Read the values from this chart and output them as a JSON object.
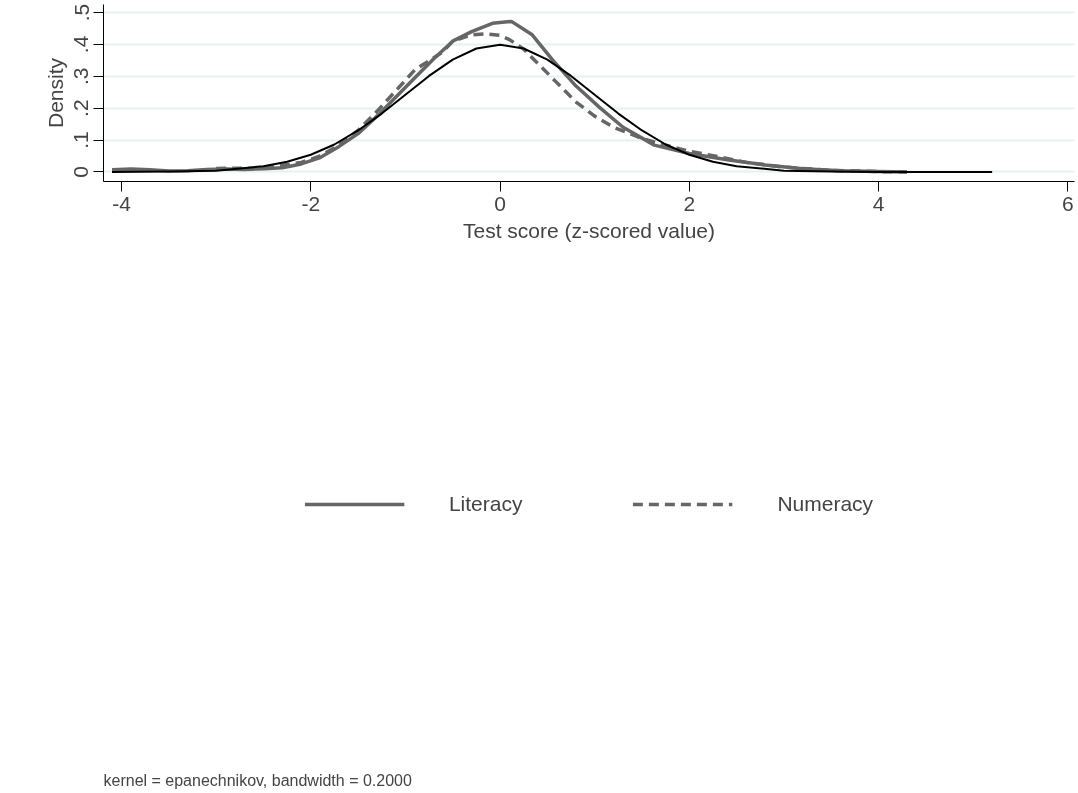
{
  "chart_data": {
    "type": "line",
    "xlabel": "Test score (z-scored value)",
    "ylabel": "Density",
    "xlim": [
      -4.19,
      6.07
    ],
    "ylim": [
      -0.03,
      0.525
    ],
    "xticks": [
      -4,
      -2,
      0,
      2,
      4,
      6
    ],
    "yticks": [
      0,
      {
        "value": 0.1,
        "label": ".1"
      },
      {
        "value": 0.2,
        "label": ".2"
      },
      {
        "value": 0.3,
        "label": ".3"
      },
      {
        "value": 0.4,
        "label": ".4"
      },
      {
        "value": 0.5,
        "label": ".5"
      }
    ],
    "grid": "y",
    "legend": "bottom",
    "series": [
      {
        "name": "Literacy",
        "color": "#666666",
        "line_style": "solid",
        "x": [
          -4.1,
          -3.9,
          -3.7,
          -3.5,
          -3.3,
          -3.1,
          -2.9,
          -2.7,
          -2.5,
          -2.3,
          -2.1,
          -1.9,
          -1.7,
          -1.5,
          -1.3,
          -1.1,
          -0.9,
          -0.7,
          -0.5,
          -0.3,
          -0.08,
          0.12,
          0.34,
          0.55,
          0.8,
          1.06,
          1.3,
          1.63,
          2.0,
          2.4,
          2.8,
          3.2,
          3.6,
          4.0,
          4.3
        ],
        "values": [
          0.007,
          0.009,
          0.007,
          0.003,
          0.004,
          0.008,
          0.009,
          0.008,
          0.01,
          0.013,
          0.025,
          0.045,
          0.08,
          0.12,
          0.175,
          0.235,
          0.295,
          0.355,
          0.41,
          0.44,
          0.466,
          0.472,
          0.43,
          0.353,
          0.27,
          0.2,
          0.14,
          0.084,
          0.058,
          0.038,
          0.022,
          0.01,
          0.004,
          0.001,
          0.0
        ]
      },
      {
        "name": "Numeracy",
        "color": "#666666",
        "line_style": "dashed",
        "x": [
          -3.0,
          -2.5,
          -2.1,
          -1.9,
          -1.7,
          -1.5,
          -1.3,
          -1.1,
          -0.9,
          -0.61,
          -0.5,
          -0.3,
          -0.15,
          0.0,
          0.1,
          0.25,
          0.4,
          0.6,
          0.8,
          1.0,
          1.2,
          1.5,
          1.8,
          2.0,
          2.3,
          2.6,
          3.0,
          3.5,
          4.0,
          4.3
        ],
        "values": [
          0.011,
          0.012,
          0.03,
          0.05,
          0.085,
          0.13,
          0.19,
          0.255,
          0.32,
          0.375,
          0.41,
          0.43,
          0.433,
          0.428,
          0.415,
          0.385,
          0.34,
          0.28,
          0.22,
          0.175,
          0.14,
          0.105,
          0.08,
          0.065,
          0.048,
          0.03,
          0.015,
          0.005,
          0.001,
          0.0
        ]
      },
      {
        "color": "#000000",
        "line_style": "solid",
        "x": [
          -4.1,
          -3.5,
          -3.0,
          -2.5,
          -2.25,
          -2.0,
          -1.75,
          -1.5,
          -1.25,
          -1.0,
          -0.75,
          -0.5,
          -0.25,
          0.0,
          0.25,
          0.5,
          0.75,
          1.0,
          1.25,
          1.5,
          1.75,
          2.0,
          2.25,
          2.5,
          3.0,
          3.5,
          4.0,
          5.2
        ],
        "values": [
          0.0,
          0.001,
          0.004,
          0.018,
          0.032,
          0.054,
          0.086,
          0.13,
          0.183,
          0.242,
          0.301,
          0.352,
          0.387,
          0.399,
          0.387,
          0.352,
          0.301,
          0.242,
          0.183,
          0.13,
          0.086,
          0.054,
          0.032,
          0.018,
          0.004,
          0.001,
          0.0,
          0.0
        ]
      }
    ],
    "annotations": [
      "kernel = epanechnikov, bandwidth = 0.2000"
    ]
  }
}
